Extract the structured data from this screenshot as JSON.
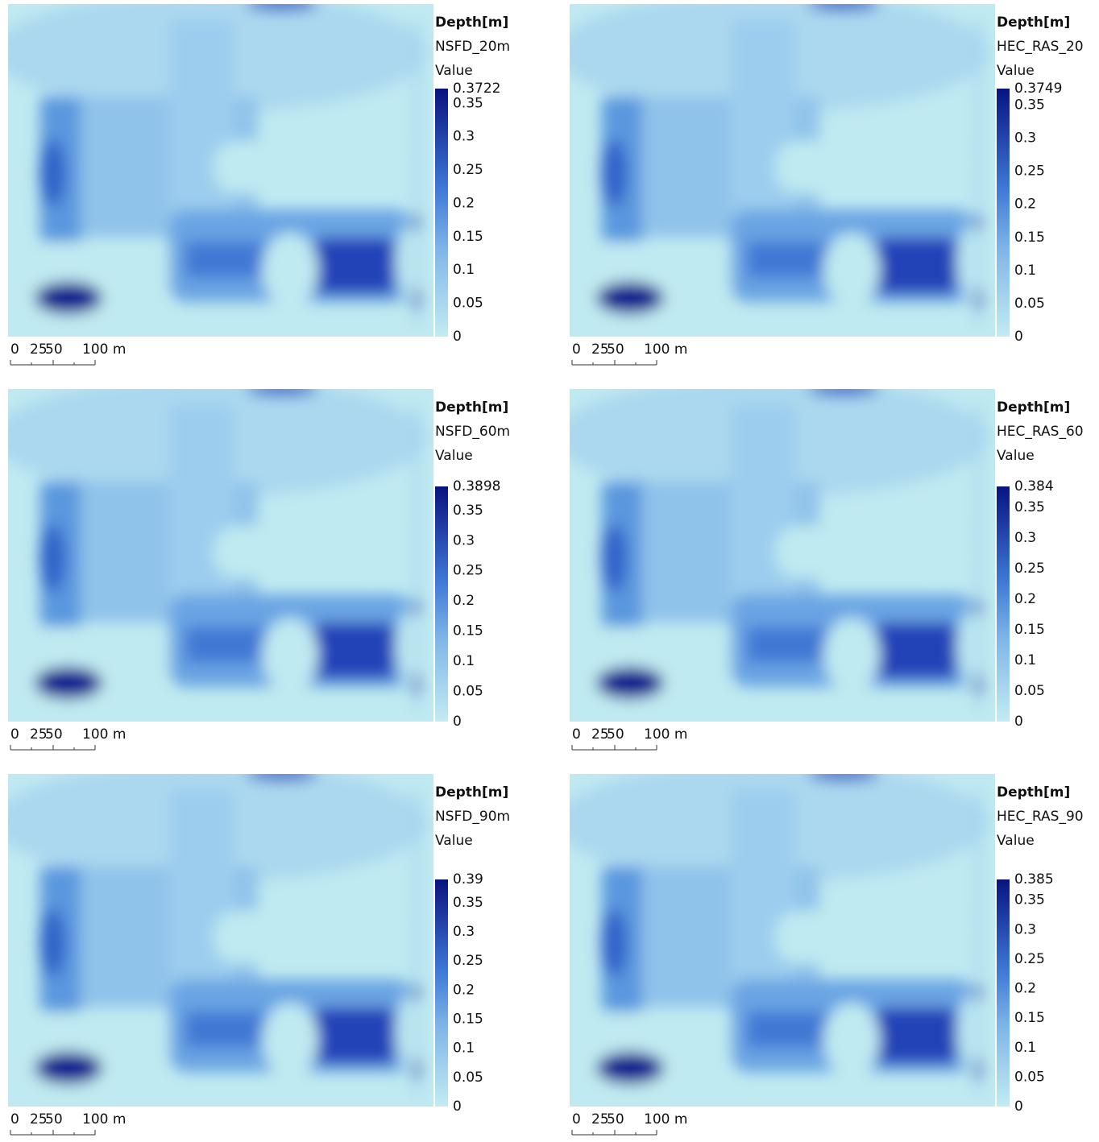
{
  "panels": [
    {
      "legend": {
        "title": "Depth[m]",
        "layer": "NSFD_20m",
        "field": "Value",
        "ticks": [
          0.3722,
          0.35,
          0.3,
          0.25,
          0.2,
          0.15,
          0.1,
          0.05,
          0
        ]
      },
      "scale_bar": {
        "labels": [
          "0",
          "25",
          "50",
          "100 m"
        ]
      }
    },
    {
      "legend": {
        "title": "Depth[m]",
        "layer": "HEC_RAS_20",
        "field": "Value",
        "ticks": [
          0.3749,
          0.35,
          0.3,
          0.25,
          0.2,
          0.15,
          0.1,
          0.05,
          0
        ]
      },
      "scale_bar": {
        "labels": [
          "0",
          "25",
          "50",
          "100 m"
        ]
      }
    },
    {
      "legend": {
        "title": "Depth[m]",
        "layer": "NSFD_60m",
        "field": "Value",
        "ticks": [
          0.3898,
          0.35,
          0.3,
          0.25,
          0.2,
          0.15,
          0.1,
          0.05,
          0
        ]
      },
      "scale_bar": {
        "labels": [
          "0",
          "25",
          "50",
          "100 m"
        ]
      }
    },
    {
      "legend": {
        "title": "Depth[m]",
        "layer": "HEC_RAS_60",
        "field": "Value",
        "ticks": [
          0.384,
          0.35,
          0.3,
          0.25,
          0.2,
          0.15,
          0.1,
          0.05,
          0
        ]
      },
      "scale_bar": {
        "labels": [
          "0",
          "25",
          "50",
          "100 m"
        ]
      }
    },
    {
      "legend": {
        "title": "Depth[m]",
        "layer": "NSFD_90m",
        "field": "Value",
        "ticks": [
          0.39,
          0.35,
          0.3,
          0.25,
          0.2,
          0.15,
          0.1,
          0.05,
          0
        ]
      },
      "scale_bar": {
        "labels": [
          "0",
          "25",
          "50",
          "100 m"
        ]
      }
    },
    {
      "legend": {
        "title": "Depth[m]",
        "layer": "HEC_RAS_90",
        "field": "Value",
        "ticks": [
          0.385,
          0.35,
          0.3,
          0.25,
          0.2,
          0.15,
          0.1,
          0.05,
          0
        ]
      },
      "scale_bar": {
        "labels": [
          "0",
          "25",
          "50",
          "100 m"
        ]
      }
    }
  ]
}
